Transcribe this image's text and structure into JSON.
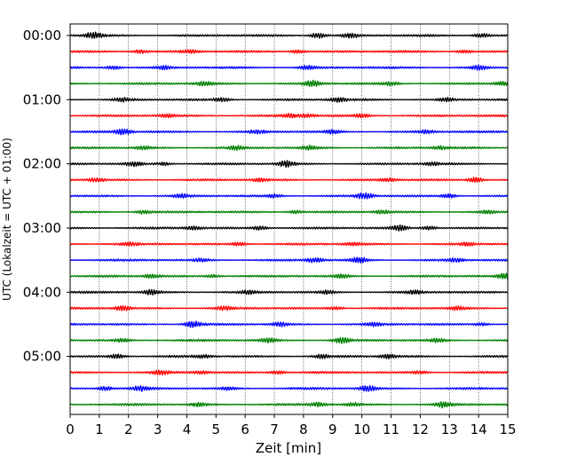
{
  "chart_data": {
    "type": "line",
    "xlabel": "Zeit  [min]",
    "ylabel": "UTC (Lokalzeit = UTC + 01:00)",
    "xlim": [
      0,
      15
    ],
    "x_ticks": [
      0,
      1,
      2,
      3,
      4,
      5,
      6,
      7,
      8,
      9,
      10,
      11,
      12,
      13,
      14,
      15
    ],
    "y_tick_labels": [
      "00:00",
      "01:00",
      "02:00",
      "03:00",
      "04:00",
      "05:00"
    ],
    "y_tick_rows": [
      0,
      4,
      8,
      12,
      16,
      20
    ],
    "grid_x": true,
    "traces_per_hour": 4,
    "trace_minutes": 15,
    "traces": [
      {
        "start": "00:00",
        "color": "#000000"
      },
      {
        "start": "00:15",
        "color": "#ff0000"
      },
      {
        "start": "00:30",
        "color": "#0000ff"
      },
      {
        "start": "00:45",
        "color": "#008000"
      },
      {
        "start": "01:00",
        "color": "#000000"
      },
      {
        "start": "01:15",
        "color": "#ff0000"
      },
      {
        "start": "01:30",
        "color": "#0000ff"
      },
      {
        "start": "01:45",
        "color": "#008000"
      },
      {
        "start": "02:00",
        "color": "#000000"
      },
      {
        "start": "02:15",
        "color": "#ff0000"
      },
      {
        "start": "02:30",
        "color": "#0000ff"
      },
      {
        "start": "02:45",
        "color": "#008000"
      },
      {
        "start": "03:00",
        "color": "#000000"
      },
      {
        "start": "03:15",
        "color": "#ff0000"
      },
      {
        "start": "03:30",
        "color": "#0000ff"
      },
      {
        "start": "03:45",
        "color": "#008000"
      },
      {
        "start": "04:00",
        "color": "#000000"
      },
      {
        "start": "04:15",
        "color": "#ff0000"
      },
      {
        "start": "04:30",
        "color": "#0000ff"
      },
      {
        "start": "04:45",
        "color": "#008000"
      },
      {
        "start": "05:00",
        "color": "#000000"
      },
      {
        "start": "05:15",
        "color": "#ff0000"
      },
      {
        "start": "05:30",
        "color": "#0000ff"
      },
      {
        "start": "05:45",
        "color": "#008000"
      }
    ],
    "bursts": [
      [
        [
          0.8,
          1.0
        ],
        [
          8.5,
          0.9
        ],
        [
          9.6,
          0.8
        ],
        [
          14.1,
          0.7
        ]
      ],
      [
        [
          2.4,
          0.6
        ],
        [
          4.1,
          0.5
        ],
        [
          7.8,
          0.6
        ],
        [
          13.5,
          0.5
        ]
      ],
      [
        [
          1.5,
          0.6
        ],
        [
          3.2,
          0.5
        ],
        [
          8.1,
          0.7
        ],
        [
          14.0,
          0.7
        ]
      ],
      [
        [
          4.6,
          0.6
        ],
        [
          8.3,
          1.0
        ],
        [
          11.0,
          0.5
        ],
        [
          14.8,
          0.6
        ]
      ],
      [
        [
          1.8,
          0.5
        ],
        [
          5.2,
          0.6
        ],
        [
          9.2,
          0.7
        ],
        [
          12.9,
          0.5
        ]
      ],
      [
        [
          3.3,
          0.5
        ],
        [
          7.5,
          0.6
        ],
        [
          8.1,
          0.5
        ],
        [
          10.0,
          0.6
        ]
      ],
      [
        [
          1.8,
          1.0
        ],
        [
          6.4,
          0.5
        ],
        [
          9.0,
          0.6
        ],
        [
          12.2,
          0.5
        ]
      ],
      [
        [
          2.5,
          0.5
        ],
        [
          5.7,
          0.6
        ],
        [
          8.2,
          0.6
        ],
        [
          12.7,
          0.5
        ]
      ],
      [
        [
          2.2,
          0.7
        ],
        [
          3.2,
          0.5
        ],
        [
          7.4,
          0.9
        ],
        [
          12.4,
          0.5
        ]
      ],
      [
        [
          0.9,
          0.6
        ],
        [
          6.5,
          0.5
        ],
        [
          13.9,
          0.9
        ],
        [
          10.9,
          0.5
        ]
      ],
      [
        [
          7.0,
          0.5
        ],
        [
          10.1,
          1.0
        ],
        [
          13.0,
          0.6
        ],
        [
          3.8,
          0.5
        ]
      ],
      [
        [
          2.5,
          0.6
        ],
        [
          7.7,
          0.5
        ],
        [
          10.7,
          0.5
        ],
        [
          14.3,
          0.5
        ]
      ],
      [
        [
          4.2,
          0.6
        ],
        [
          6.5,
          0.7
        ],
        [
          11.3,
          1.0
        ],
        [
          12.3,
          0.6
        ]
      ],
      [
        [
          2.0,
          0.5
        ],
        [
          5.8,
          0.6
        ],
        [
          9.7,
          0.5
        ],
        [
          13.6,
          0.5
        ]
      ],
      [
        [
          8.4,
          0.8
        ],
        [
          9.9,
          1.0
        ],
        [
          13.2,
          0.5
        ],
        [
          4.5,
          0.5
        ]
      ],
      [
        [
          2.8,
          0.6
        ],
        [
          4.9,
          0.5
        ],
        [
          9.3,
          0.6
        ],
        [
          14.9,
          0.9
        ]
      ],
      [
        [
          2.8,
          0.8
        ],
        [
          6.1,
          0.5
        ],
        [
          8.8,
          0.5
        ],
        [
          11.8,
          0.5
        ]
      ],
      [
        [
          1.8,
          0.8
        ],
        [
          5.3,
          0.5
        ],
        [
          9.1,
          0.5
        ],
        [
          13.3,
          0.5
        ]
      ],
      [
        [
          4.2,
          1.0
        ],
        [
          7.2,
          0.6
        ],
        [
          10.4,
          0.5
        ],
        [
          14.1,
          0.5
        ]
      ],
      [
        [
          1.8,
          0.6
        ],
        [
          6.8,
          0.7
        ],
        [
          9.3,
          0.9
        ],
        [
          12.6,
          0.6
        ]
      ],
      [
        [
          1.6,
          0.7
        ],
        [
          4.6,
          0.5
        ],
        [
          8.6,
          0.6
        ],
        [
          10.9,
          0.7
        ]
      ],
      [
        [
          3.1,
          0.6
        ],
        [
          4.5,
          0.5
        ],
        [
          7.1,
          0.6
        ],
        [
          12.0,
          0.5
        ]
      ],
      [
        [
          1.2,
          0.7
        ],
        [
          2.4,
          0.7
        ],
        [
          5.4,
          0.5
        ],
        [
          10.2,
          0.9
        ]
      ],
      [
        [
          4.4,
          0.6
        ],
        [
          8.5,
          0.7
        ],
        [
          9.7,
          0.5
        ],
        [
          12.8,
          0.9
        ]
      ]
    ]
  }
}
